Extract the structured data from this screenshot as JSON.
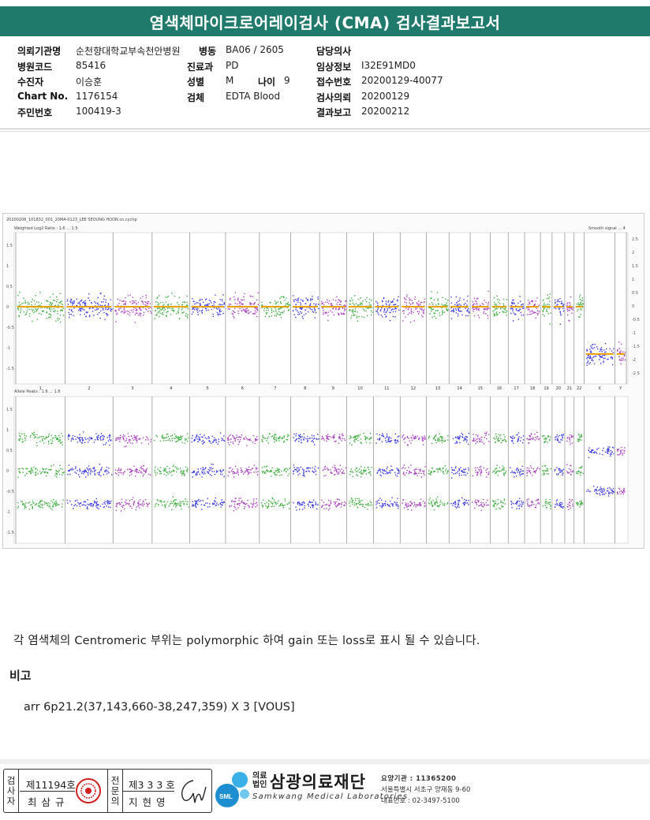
{
  "title": "염색체마이크로어레이검사 (CMA) 검사결과보고서",
  "info": {
    "org_label": "의뢰기관명",
    "org_value": "순천향대학교부속천안병원",
    "ward_label": "병동",
    "ward_value": "BA06 / 2605",
    "doctor_label": "담당의사",
    "doctor_value": "",
    "hospcode_label": "병원코드",
    "hospcode_value": "85416",
    "dept_label": "진료과",
    "dept_value": "PD",
    "clinical_label": "임상정보",
    "clinical_value": "I32E91MD0",
    "patient_label": "수진자",
    "patient_value": "이승훈",
    "sex_label": "성별",
    "sex_value": "M",
    "age_label": "나이",
    "age_value": "9",
    "receipt_label": "접수번호",
    "receipt_value": "20200129-40077",
    "chart_label": "Chart No.",
    "chart_value": "1176154",
    "specimen_label": "검체",
    "specimen_value": "EDTA Blood",
    "request_label": "검사의뢰",
    "request_value": "20200129",
    "id_label": "주민번호",
    "id_value": "100419-3",
    "report_label": "결과보고",
    "report_value": "20200212"
  },
  "chart_header": {
    "file": "20200206_101832_001_20MA-0123_LEE SEOUNG HOON.cn.cychp",
    "top_panel_label": "Weighted Log2 Ratio : 1.6 ... 1.5",
    "top_panel_right": "Smooth signal ... 4",
    "bottom_panel_label": "Allele Peaks : 1.6 ... 1.6"
  },
  "chart_data": {
    "type": "scatter",
    "chromosomes": [
      "1",
      "2",
      "3",
      "4",
      "5",
      "6",
      "7",
      "8",
      "9",
      "10",
      "11",
      "12",
      "13",
      "14",
      "15",
      "16",
      "17",
      "18",
      "19",
      "20",
      "21",
      "22",
      "X",
      "Y"
    ],
    "colors": {
      "green": "#22a022",
      "blue": "#1a1ad8",
      "purple": "#9a22b4",
      "smooth": "#e7a400"
    },
    "log2_ratio_axis_left": [
      "1.5",
      "1",
      "0.5",
      "0",
      "-0.5",
      "-1",
      "-1.5"
    ],
    "log2_ratio_axis_right": [
      "2.5",
      "2",
      "1.5",
      "1",
      "0.5",
      "0",
      "-0.5",
      "-1",
      "-1.5",
      "-2",
      "-2.5"
    ],
    "allele_peaks_axis_left": [
      "1.5",
      "1",
      "0.5",
      "0",
      "-0.5",
      "-1",
      "-1.5"
    ],
    "x_chromosome_log2_ratio": -1,
    "autosome_log2_ratio": 0
  },
  "note": "각 염색체의 Centromeric 부위는 polymorphic 하여 gain 또는 loss로 표시 될 수 있습니다.",
  "remark_heading": "비고",
  "remark": "arr 6p21.2(37,143,660-38,247,359) X 3 [VOUS]",
  "signature": {
    "tester_vertical": "검사자",
    "tester_no": "제11194호",
    "tester_name": "최 삼 규",
    "specialist_vertical": "전문의",
    "specialist_no": "제3 3 3 호",
    "specialist_name": "지 현 영"
  },
  "logo": {
    "legal": "의료\n법인",
    "brand": "삼광의료재단",
    "eng": "Samkwang Medical Laboratories",
    "sml": "SML",
    "agency": "요양기관 : 11365200",
    "address": "서울특별시 서초구 양재동 9-60",
    "phone": "대표번호 : 02-3497-5100"
  }
}
